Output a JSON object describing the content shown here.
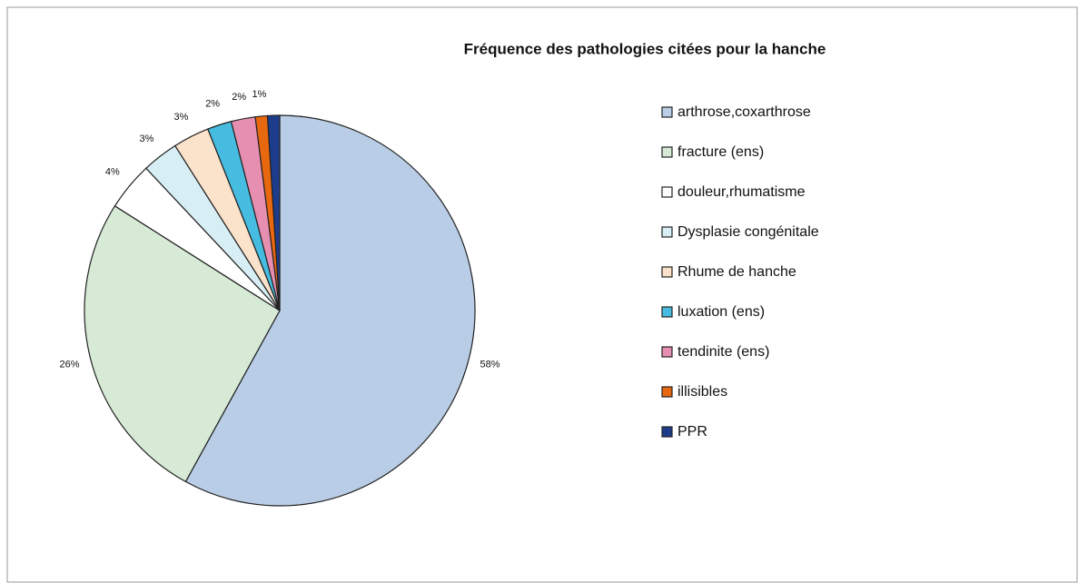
{
  "chart_data": {
    "type": "pie",
    "title": "Fréquence des pathologies citées pour la hanche",
    "categories": [
      "arthrose,coxarthrose",
      "fracture (ens)",
      "douleur,rhumatisme",
      "Dysplasie congénitale",
      "Rhume de hanche",
      "luxation (ens)",
      "tendinite (ens)",
      "illisibles",
      "PPR"
    ],
    "values": [
      58,
      26,
      4,
      3,
      3,
      2,
      2,
      1,
      1
    ],
    "value_labels": [
      "58%",
      "26%",
      "4%",
      "3%",
      "3%",
      "2%",
      "2%",
      "1%",
      null
    ],
    "colors": [
      "#b9cde6",
      "#d6ead6",
      "#ffffff",
      "#d8eef5",
      "#fbe2cb",
      "#46bde0",
      "#e68fb1",
      "#e8680f",
      "#1d3c8c"
    ],
    "legend": "right"
  }
}
